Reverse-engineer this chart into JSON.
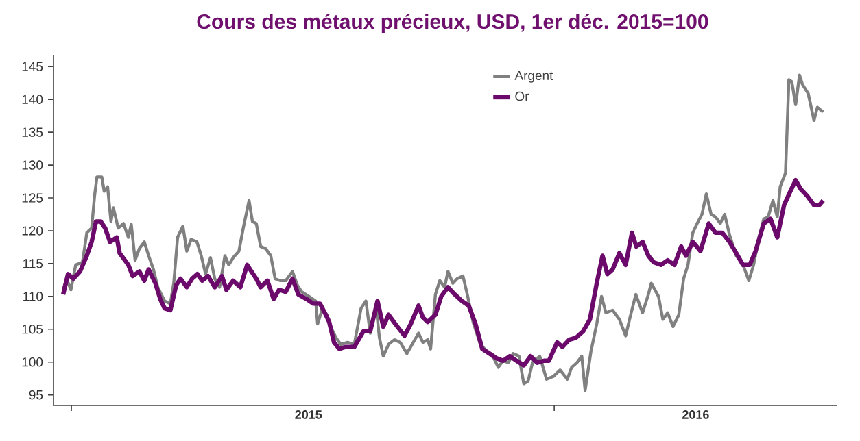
{
  "chart_data": {
    "type": "line",
    "title": "Cours des métaux précieux, USD, 1er déc. 2015=100",
    "xlim": [
      2014.963,
      2016.585
    ],
    "ylim": [
      93.4,
      146.8
    ],
    "xticks": [
      {
        "value": 2015,
        "label": null
      },
      {
        "value": 2015.491,
        "label": "2015"
      },
      {
        "value": 2016,
        "label": null
      },
      {
        "value": 2016.293,
        "label": "2016"
      }
    ],
    "yticks": [
      95,
      100,
      105,
      110,
      115,
      120,
      125,
      130,
      135,
      140,
      145
    ],
    "legend": "top",
    "series": [
      {
        "name": "Argent",
        "color": "#808080",
        "x": [
          2014.983,
          2014.99,
          2014.999,
          2015.009,
          2015.023,
          2015.032,
          2015.042,
          2015.048,
          2015.053,
          2015.063,
          2015.068,
          2015.075,
          2015.082,
          2015.087,
          2015.097,
          2015.108,
          2015.118,
          2015.124,
          2015.132,
          2015.141,
          2015.151,
          2015.16,
          2015.17,
          2015.179,
          2015.193,
          2015.205,
          2015.212,
          2015.22,
          2015.231,
          2015.239,
          2015.248,
          2015.26,
          2015.269,
          2015.278,
          2015.288,
          2015.297,
          2015.307,
          2015.318,
          2015.326,
          2015.335,
          2015.347,
          2015.356,
          2015.368,
          2015.375,
          2015.383,
          2015.392,
          2015.402,
          2015.413,
          2015.422,
          2015.432,
          2015.444,
          2015.458,
          2015.468,
          2015.477,
          2015.492,
          2015.506,
          2015.51,
          2015.52,
          2015.529,
          2015.539,
          2015.548,
          2015.558,
          2015.572,
          2015.586,
          2015.6,
          2015.61,
          2015.619,
          2015.631,
          2015.638,
          2015.646,
          2015.657,
          2015.669,
          2015.681,
          2015.695,
          2015.719,
          2015.728,
          2015.738,
          2015.744,
          2015.754,
          2015.763,
          2015.773,
          2015.78,
          2015.79,
          2015.799,
          2015.811,
          2015.82,
          2015.832,
          2015.847,
          2015.861,
          2015.875,
          2015.884,
          2015.894,
          2015.905,
          2015.915,
          2015.927,
          2015.937,
          2015.946,
          2015.955,
          2015.97,
          2015.984,
          2015.998,
          2016.012,
          2016.027,
          2016.036,
          2016.047,
          2016.057,
          2016.064,
          2016.076,
          2016.088,
          2016.098,
          2016.107,
          2016.121,
          2016.135,
          2016.148,
          2016.157,
          2016.169,
          2016.183,
          2016.195,
          2016.201,
          2016.216,
          2016.225,
          2016.235,
          2016.246,
          2016.258,
          2016.268,
          2016.277,
          2016.287,
          2016.296,
          2016.306,
          2016.315,
          2016.325,
          2016.334,
          2016.344,
          2016.353,
          2016.363,
          2016.377,
          2016.391,
          2016.403,
          2016.413,
          2016.424,
          2016.434,
          2016.443,
          2016.453,
          2016.462,
          2016.468,
          2016.479,
          2016.486,
          2016.492,
          2016.5,
          2016.508,
          2016.514,
          2016.526,
          2016.538,
          2016.545,
          2016.557
        ],
        "values": [
          111.0,
          112.7,
          111.0,
          114.8,
          115.2,
          119.7,
          120.4,
          125.3,
          128.2,
          128.2,
          126.0,
          126.7,
          121.4,
          123.5,
          120.4,
          121.1,
          119.0,
          121.0,
          115.5,
          117.3,
          118.3,
          116.2,
          114.1,
          111.4,
          109.3,
          108.9,
          112.0,
          119.0,
          120.7,
          116.9,
          118.7,
          118.3,
          116.2,
          113.4,
          115.9,
          112.7,
          111.4,
          116.2,
          114.8,
          115.9,
          116.9,
          120.4,
          124.6,
          121.4,
          121.1,
          117.6,
          117.3,
          116.2,
          112.7,
          112.4,
          112.4,
          113.8,
          111.7,
          110.7,
          110.0,
          109.3,
          105.8,
          108.2,
          107.2,
          105.1,
          103.7,
          102.7,
          103.0,
          102.7,
          108.2,
          109.3,
          104.4,
          108.6,
          103.7,
          100.9,
          102.7,
          103.4,
          103.0,
          101.3,
          104.4,
          103.0,
          103.4,
          102.0,
          110.3,
          112.4,
          111.4,
          113.8,
          112.0,
          112.7,
          113.1,
          110.3,
          106.1,
          102.7,
          101.6,
          100.6,
          99.2,
          100.2,
          99.9,
          101.3,
          100.9,
          96.7,
          97.1,
          99.9,
          100.9,
          97.4,
          97.8,
          98.8,
          97.4,
          99.2,
          99.9,
          100.9,
          95.7,
          101.6,
          105.8,
          110.0,
          107.5,
          107.9,
          106.5,
          104.0,
          106.8,
          110.3,
          107.5,
          110.3,
          112.0,
          110.0,
          106.5,
          107.5,
          105.4,
          107.2,
          112.7,
          114.8,
          119.7,
          121.1,
          122.5,
          125.6,
          122.5,
          122.1,
          121.1,
          122.5,
          119.4,
          116.2,
          114.8,
          112.4,
          114.8,
          119.0,
          121.8,
          122.1,
          124.6,
          122.1,
          126.7,
          128.8,
          143.0,
          142.7,
          139.2,
          143.7,
          142.3,
          140.9,
          136.8,
          138.8,
          138.1
        ]
      },
      {
        "name": "Or",
        "color": "#6b0a6b",
        "x": [
          2014.983,
          2014.993,
          2015.004,
          2015.018,
          2015.032,
          2015.042,
          2015.051,
          2015.061,
          2015.07,
          2015.08,
          2015.094,
          2015.1,
          2015.118,
          2015.127,
          2015.141,
          2015.151,
          2015.16,
          2015.174,
          2015.184,
          2015.193,
          2015.205,
          2015.217,
          2015.226,
          2015.239,
          2015.25,
          2015.261,
          2015.271,
          2015.283,
          2015.297,
          2015.312,
          2015.321,
          2015.335,
          2015.35,
          2015.364,
          2015.373,
          2015.383,
          2015.392,
          2015.406,
          2015.419,
          2015.43,
          2015.444,
          2015.458,
          2015.47,
          2015.487,
          2015.501,
          2015.515,
          2015.527,
          2015.534,
          2015.544,
          2015.555,
          2015.567,
          2015.586,
          2015.605,
          2015.619,
          2015.634,
          2015.646,
          2015.657,
          2015.671,
          2015.69,
          2015.703,
          2015.719,
          2015.728,
          2015.738,
          2015.754,
          2015.766,
          2015.78,
          2015.794,
          2015.809,
          2015.823,
          2015.837,
          2015.851,
          2015.866,
          2015.88,
          2015.894,
          2015.908,
          2015.922,
          2015.937,
          2015.951,
          2015.965,
          2015.979,
          2015.989,
          2016.006,
          2016.017,
          2016.031,
          2016.045,
          2016.06,
          2016.074,
          2016.088,
          2016.1,
          2016.11,
          2016.121,
          2016.135,
          2016.148,
          2016.161,
          2016.17,
          2016.183,
          2016.195,
          2016.206,
          2016.221,
          2016.235,
          2016.249,
          2016.263,
          2016.273,
          2016.287,
          2016.303,
          2016.32,
          2016.334,
          2016.348,
          2016.363,
          2016.377,
          2016.391,
          2016.405,
          2016.417,
          2016.434,
          2016.448,
          2016.462,
          2016.476,
          2016.489,
          2016.5,
          2016.511,
          2016.524,
          2016.538,
          2016.549,
          2016.557
        ],
        "values": [
          110.3,
          113.4,
          112.7,
          113.8,
          116.2,
          118.3,
          121.4,
          121.4,
          120.4,
          118.3,
          119.0,
          116.6,
          114.8,
          113.1,
          113.8,
          112.4,
          114.1,
          112.0,
          109.6,
          108.2,
          107.9,
          111.7,
          112.7,
          111.4,
          112.7,
          113.4,
          112.4,
          113.1,
          111.4,
          113.1,
          111.0,
          112.4,
          111.4,
          114.8,
          113.8,
          112.7,
          111.4,
          112.4,
          109.6,
          111.0,
          110.7,
          112.7,
          110.3,
          109.6,
          108.9,
          108.9,
          107.2,
          106.1,
          103.0,
          102.0,
          102.3,
          102.3,
          104.7,
          104.7,
          109.3,
          105.4,
          107.2,
          105.8,
          104.0,
          105.8,
          108.6,
          106.8,
          106.1,
          107.2,
          110.0,
          111.4,
          110.3,
          109.3,
          108.6,
          105.8,
          102.0,
          101.3,
          100.6,
          100.2,
          100.9,
          100.2,
          99.5,
          100.9,
          99.9,
          100.2,
          100.2,
          103.0,
          102.3,
          103.4,
          103.7,
          104.7,
          106.5,
          112.0,
          116.2,
          113.4,
          114.1,
          116.6,
          114.8,
          119.7,
          117.6,
          118.3,
          116.2,
          115.2,
          114.8,
          115.5,
          114.8,
          117.6,
          116.2,
          118.3,
          116.9,
          121.1,
          119.7,
          119.7,
          118.3,
          116.6,
          114.8,
          114.8,
          116.9,
          121.1,
          121.8,
          119.0,
          123.9,
          126.0,
          127.7,
          126.3,
          125.3,
          123.9,
          123.9,
          124.6
        ]
      }
    ]
  }
}
